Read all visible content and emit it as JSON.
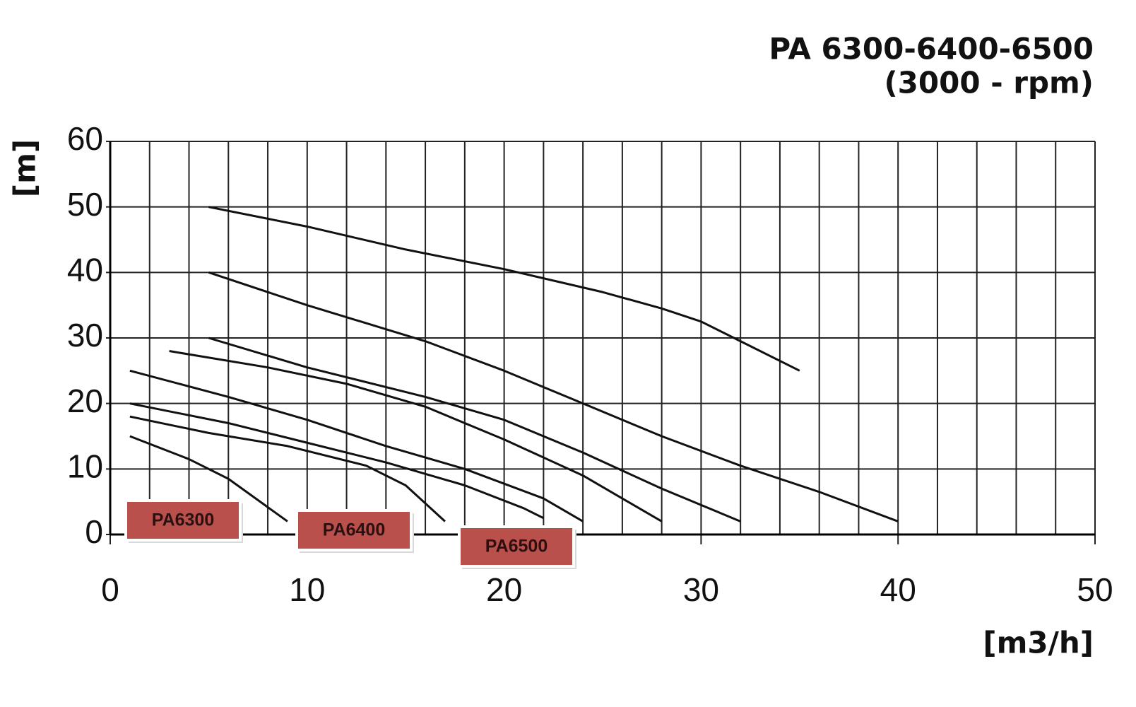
{
  "chart_data": {
    "type": "line",
    "title": "PA 6300-6400-6500",
    "subtitle": "(3000 - rpm)",
    "x_label": "[m3/h]",
    "y_label": "[m]",
    "xlim": [
      0,
      50
    ],
    "ylim": [
      0,
      60
    ],
    "xticks": [
      0,
      10,
      20,
      30,
      40,
      50
    ],
    "yticks": [
      0,
      10,
      20,
      30,
      40,
      50,
      60
    ],
    "xgrid": [
      0,
      2,
      4,
      6,
      8,
      10,
      12,
      14,
      16,
      18,
      20,
      22,
      24,
      26,
      28,
      30,
      32,
      34,
      36,
      38,
      40,
      42,
      44,
      46,
      48,
      50
    ],
    "grid": true,
    "series": [
      {
        "color": "#111111",
        "x": [
          5,
          10,
          15,
          20,
          25,
          28,
          30,
          32,
          35
        ],
        "values": [
          50,
          47,
          43.5,
          40.5,
          37,
          34.5,
          32.5,
          29.5,
          25
        ]
      },
      {
        "color": "#111111",
        "x": [
          5,
          10,
          16,
          20,
          24,
          28,
          32,
          36,
          40
        ],
        "values": [
          40,
          35,
          29.5,
          25,
          20,
          15,
          10.5,
          6.5,
          2
        ]
      },
      {
        "color": "#111111",
        "x": [
          5,
          10,
          16,
          20,
          24,
          28,
          32
        ],
        "values": [
          30,
          25.5,
          21,
          17.5,
          12.5,
          7,
          2
        ]
      },
      {
        "color": "#111111",
        "x": [
          3,
          8,
          12,
          16,
          20,
          24,
          28
        ],
        "values": [
          28,
          25.5,
          23,
          19.5,
          14.5,
          9,
          2
        ]
      },
      {
        "color": "#111111",
        "x": [
          1,
          6,
          10,
          14,
          18,
          22,
          24
        ],
        "values": [
          25,
          21,
          17.5,
          13.5,
          10,
          5.5,
          2
        ]
      },
      {
        "color": "#111111",
        "x": [
          1,
          6,
          10,
          14,
          18,
          21,
          22
        ],
        "values": [
          20,
          17,
          14,
          11,
          7.5,
          4,
          2.5
        ]
      },
      {
        "color": "#111111",
        "x": [
          1,
          5,
          9,
          13,
          15,
          17
        ],
        "values": [
          18,
          15.5,
          13.5,
          10.5,
          7.5,
          2
        ]
      },
      {
        "color": "#111111",
        "x": [
          1,
          4,
          6,
          9
        ],
        "values": [
          15,
          11.5,
          8.5,
          2
        ]
      }
    ],
    "annotations": [
      "PA6300",
      "PA6400",
      "PA6500"
    ],
    "annotation_color": "#b9504c"
  }
}
